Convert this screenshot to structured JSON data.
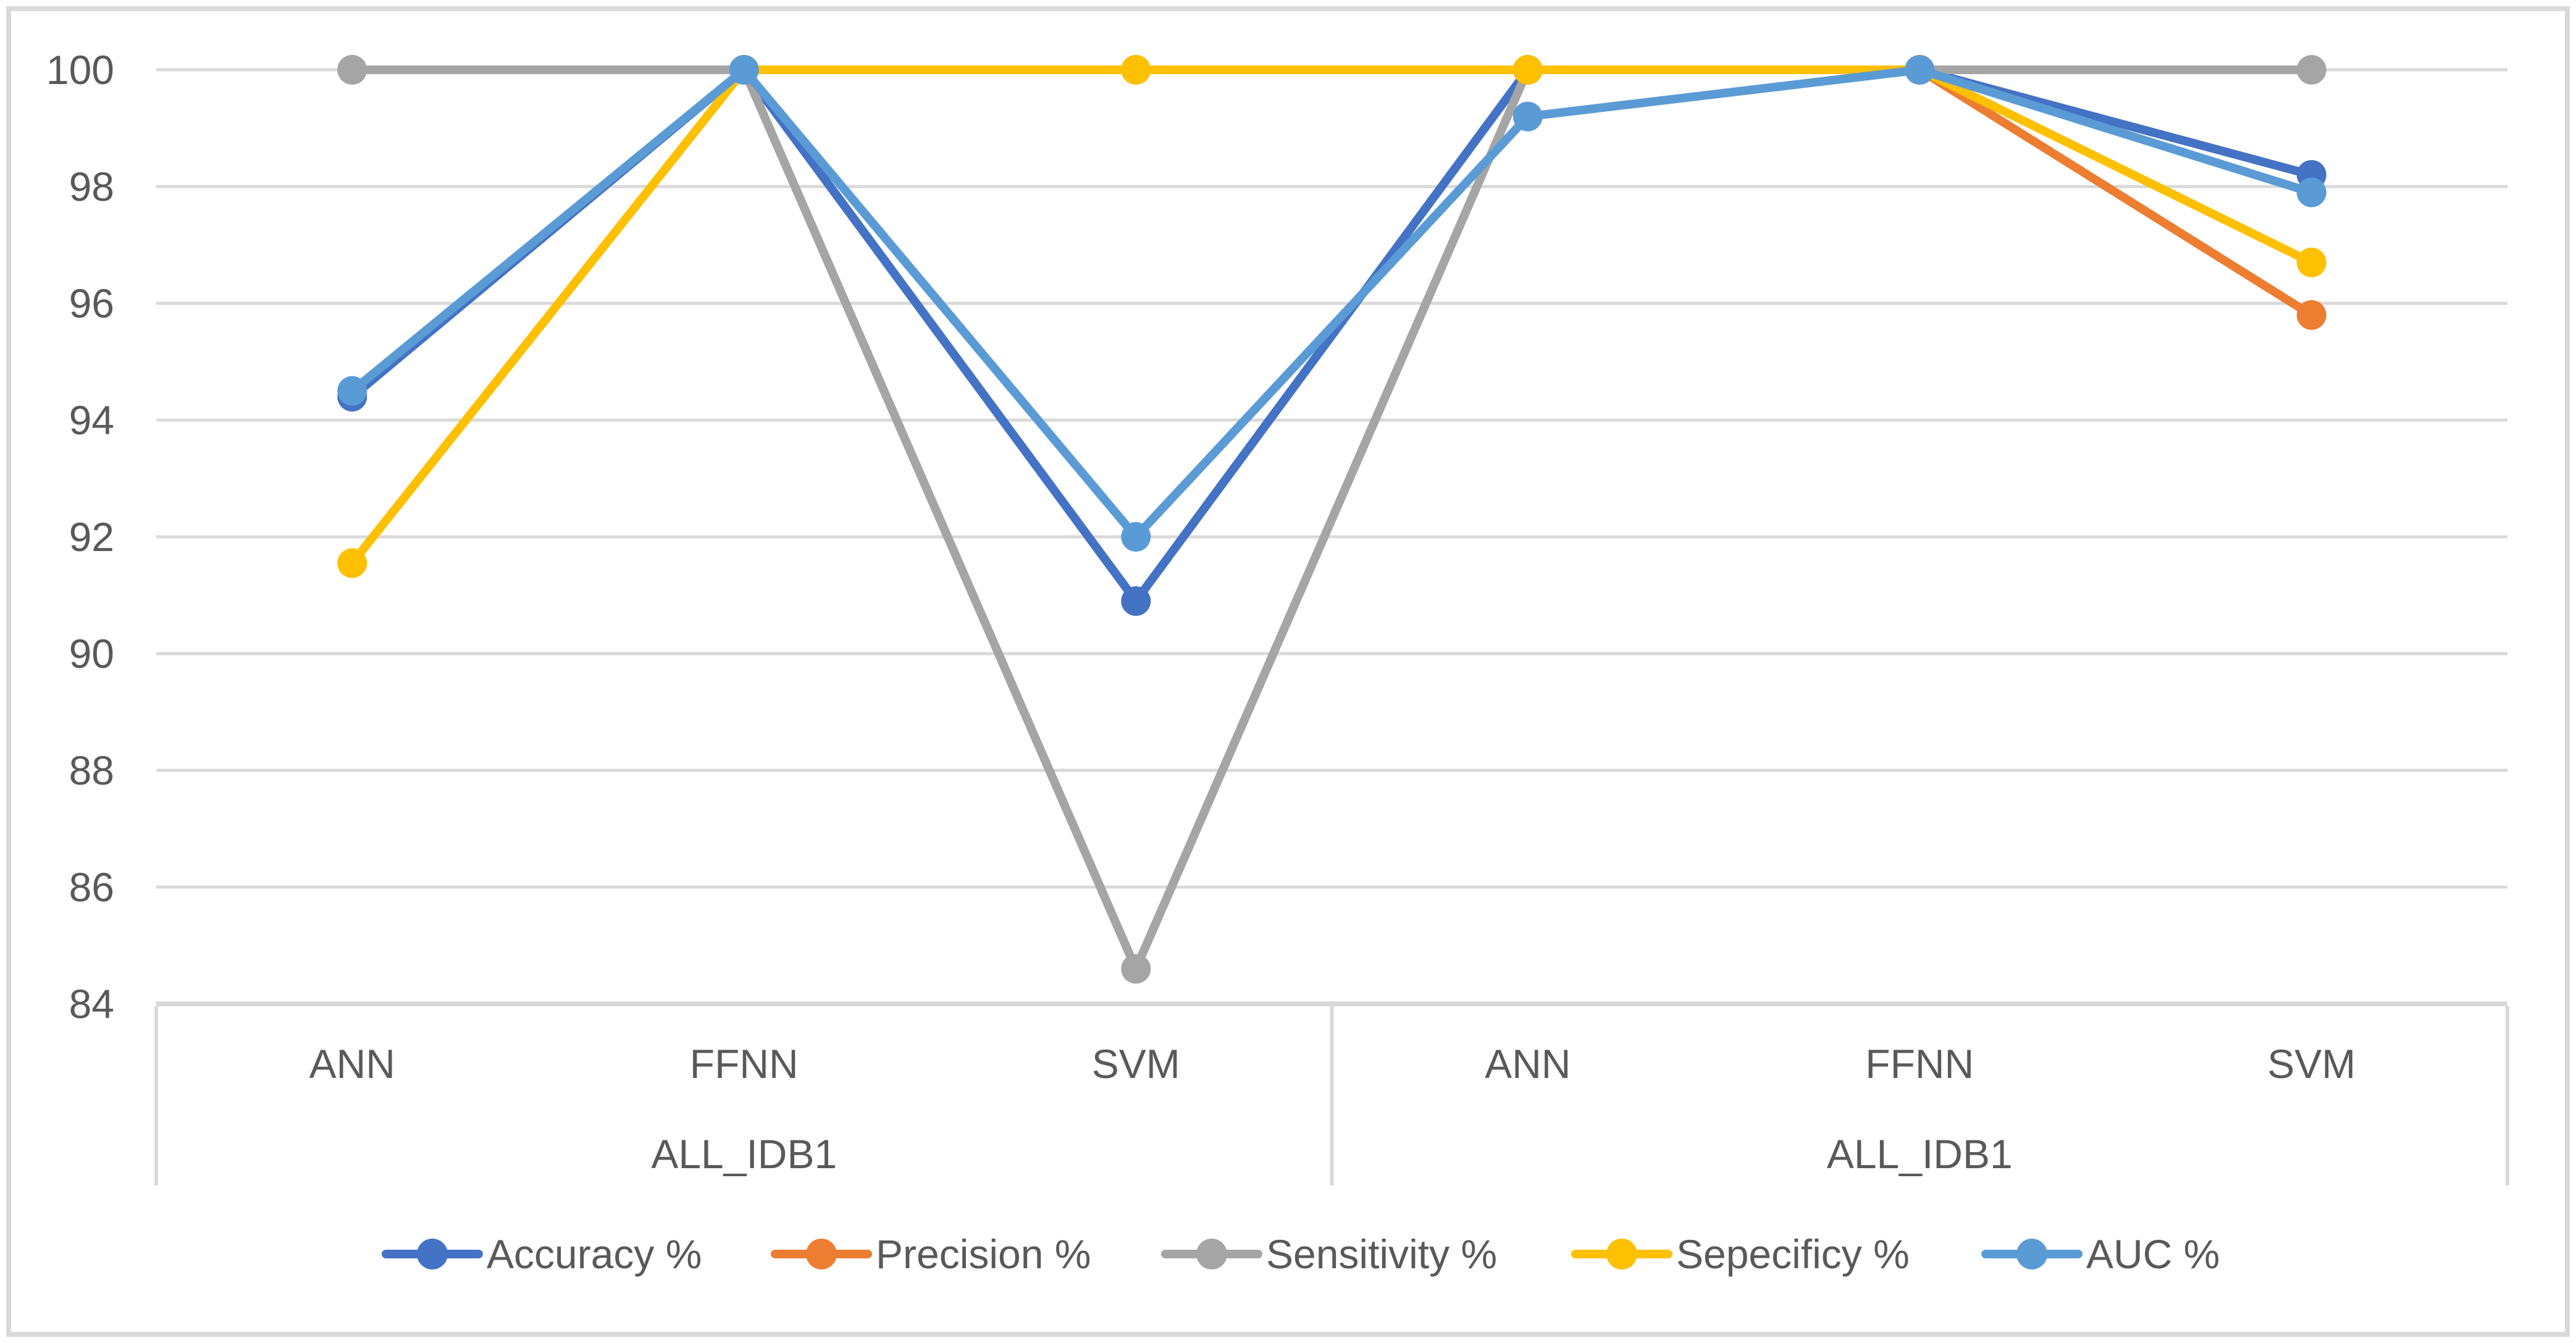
{
  "chart_data": {
    "type": "line",
    "categories": [
      "ANN",
      "FFNN",
      "SVM",
      "ANN",
      "FFNN",
      "SVM"
    ],
    "groups": [
      {
        "label": "ALL_IDB1",
        "start": 0,
        "end": 2
      },
      {
        "label": "ALL_IDB1",
        "start": 3,
        "end": 5
      }
    ],
    "y_axis": {
      "min": 84,
      "max": 100,
      "step": 2,
      "ticks": [
        "100",
        "98",
        "96",
        "94",
        "92",
        "90",
        "88",
        "86",
        "84"
      ]
    },
    "series": [
      {
        "name": "Accuracy %",
        "color": "#4472C4",
        "values": [
          94.4,
          100,
          90.9,
          100,
          100,
          98.2
        ]
      },
      {
        "name": "Precision %",
        "color": "#ED7D31",
        "values": [
          100,
          100,
          100,
          100,
          100,
          95.8
        ]
      },
      {
        "name": "Sensitivity %",
        "color": "#A5A5A5",
        "values": [
          100,
          100,
          84.6,
          100,
          100,
          100
        ]
      },
      {
        "name": "Sepecificy %",
        "color": "#FFC000",
        "values": [
          91.55,
          100,
          100,
          100,
          100,
          96.7
        ]
      },
      {
        "name": "AUC %",
        "color": "#5B9BD5",
        "values": [
          94.5,
          100,
          92,
          99.2,
          100,
          97.9
        ]
      }
    ],
    "legend": {
      "position": "bottom",
      "labels": [
        "Accuracy %",
        "Precision %",
        "Sensitivity %",
        "Sepecificy %",
        "AUC %"
      ]
    },
    "grid": true
  },
  "theme": {
    "background": "#FFFFFF",
    "frame_border": "#D9D9D9",
    "gridline": "#D9D9D9",
    "axis_line": "#D9D9D9",
    "divider": "#D9D9D9",
    "text": "#595959"
  }
}
